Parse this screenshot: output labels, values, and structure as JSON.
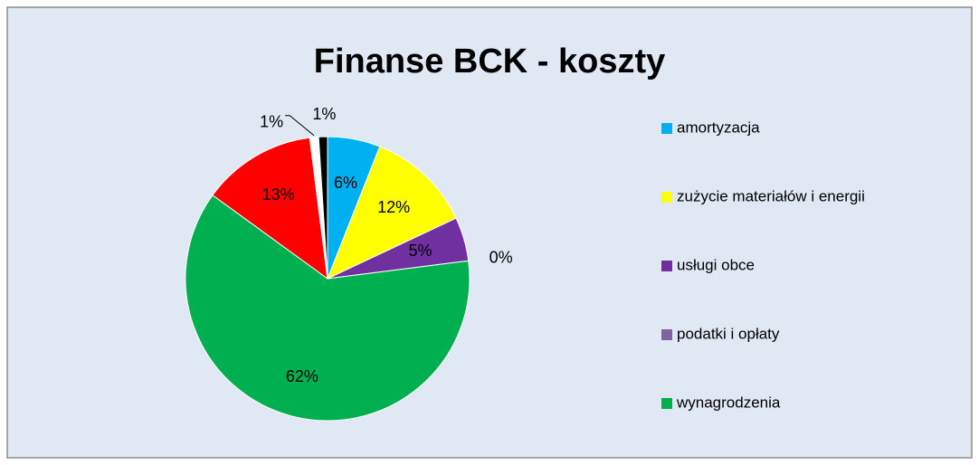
{
  "chart_data": {
    "type": "pie",
    "title": "Finanse BCK - koszty",
    "categories": [
      "amortyzacja",
      "zużycie materiałów i energii",
      "usługi obce",
      "podatki i opłaty",
      "wynagrodzenia",
      null,
      null,
      null
    ],
    "values": [
      6,
      12,
      5,
      0,
      62,
      13,
      1,
      1
    ],
    "value_labels": [
      "6%",
      "12%",
      "5%",
      "0%",
      "62%",
      "13%",
      "1%",
      "1%"
    ],
    "colors": [
      "#00b0f0",
      "#ffff00",
      "#7030a0",
      "#8064a2",
      "#00b050",
      "#ff0000",
      "#ffffff",
      "#000000"
    ],
    "legend": "right"
  }
}
